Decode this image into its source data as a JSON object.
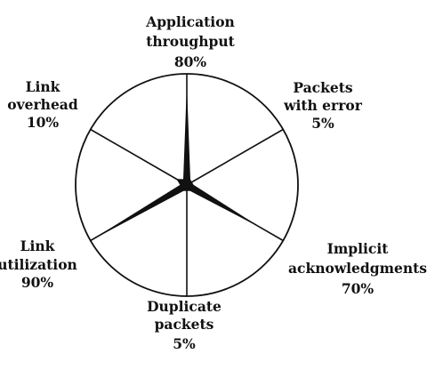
{
  "chart_data": {
    "type": "radar",
    "axes": [
      {
        "label_lines": [
          "Application",
          "throughput"
        ],
        "value_text": "80%",
        "value": 80
      },
      {
        "label_lines": [
          "Packets",
          "with error"
        ],
        "value_text": "5%",
        "value": 5
      },
      {
        "label_lines": [
          "Implicit",
          "acknowledgments"
        ],
        "value_text": "70%",
        "value": 70
      },
      {
        "label_lines": [
          "Duplicate",
          "packets"
        ],
        "value_text": "5%",
        "value": 5
      },
      {
        "label_lines": [
          "Link",
          "utilization"
        ],
        "value_text": "90%",
        "value": 90
      },
      {
        "label_lines": [
          "Link",
          "overhead"
        ],
        "value_text": "10%",
        "value": 10
      }
    ],
    "range": [
      0,
      100
    ],
    "grid": false,
    "colors": {
      "fill": "#111111",
      "stroke": "#111111",
      "background": "#ffffff"
    }
  }
}
